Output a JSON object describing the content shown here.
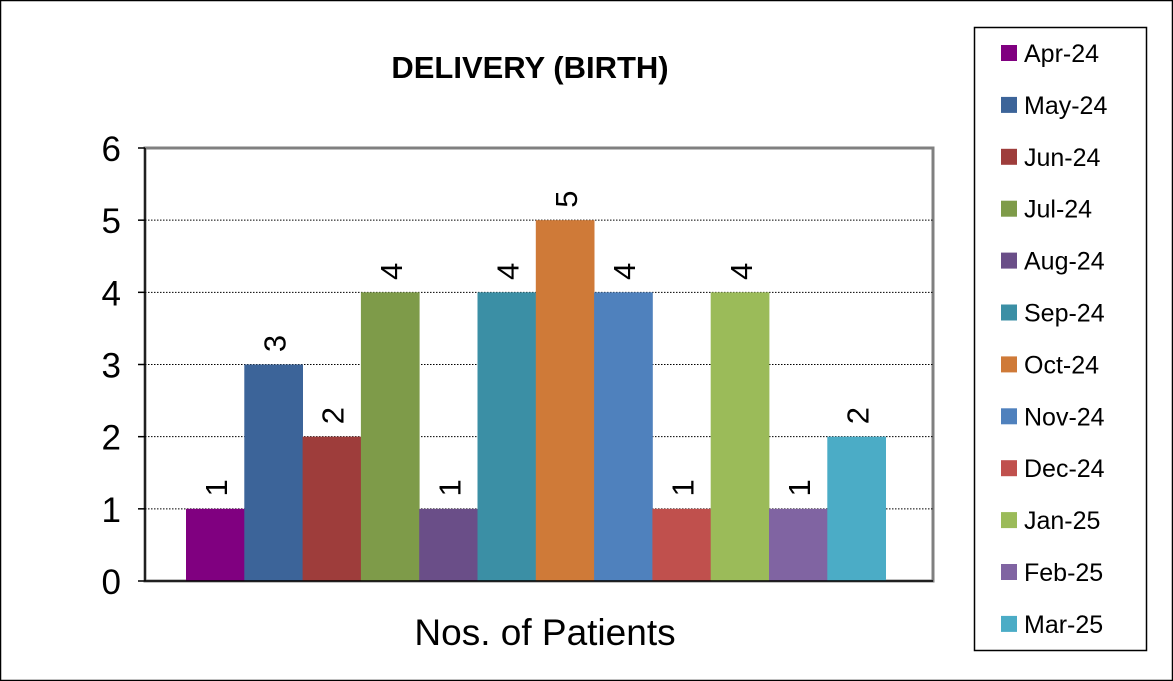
{
  "chart_data": {
    "type": "bar",
    "title": "DELIVERY (BIRTH)",
    "xlabel": "Nos. of Patients",
    "ylabel": "",
    "ylim": [
      0,
      6
    ],
    "yticks": [
      0,
      1,
      2,
      3,
      4,
      5,
      6
    ],
    "grid": true,
    "legend_position": "right",
    "data_labels": "rotated-above",
    "categories": [
      "Nos. of Patients"
    ],
    "series": [
      {
        "name": "Apr-24",
        "values": [
          1
        ],
        "color": "#800080"
      },
      {
        "name": "May-24",
        "values": [
          3
        ],
        "color": "#3C6499"
      },
      {
        "name": "Jun-24",
        "values": [
          2
        ],
        "color": "#9E3D3B"
      },
      {
        "name": "Jul-24",
        "values": [
          4
        ],
        "color": "#7E9B49"
      },
      {
        "name": "Aug-24",
        "values": [
          1
        ],
        "color": "#6A4E88"
      },
      {
        "name": "Sep-24",
        "values": [
          4
        ],
        "color": "#3B8FA5"
      },
      {
        "name": "Oct-24",
        "values": [
          5
        ],
        "color": "#CF7A38"
      },
      {
        "name": "Nov-24",
        "values": [
          4
        ],
        "color": "#4F81BD"
      },
      {
        "name": "Dec-24",
        "values": [
          1
        ],
        "color": "#C0504D"
      },
      {
        "name": "Jan-25",
        "values": [
          4
        ],
        "color": "#9BBB59"
      },
      {
        "name": "Feb-25",
        "values": [
          1
        ],
        "color": "#8064A2"
      },
      {
        "name": "Mar-25",
        "values": [
          2
        ],
        "color": "#4BACC6"
      }
    ]
  }
}
